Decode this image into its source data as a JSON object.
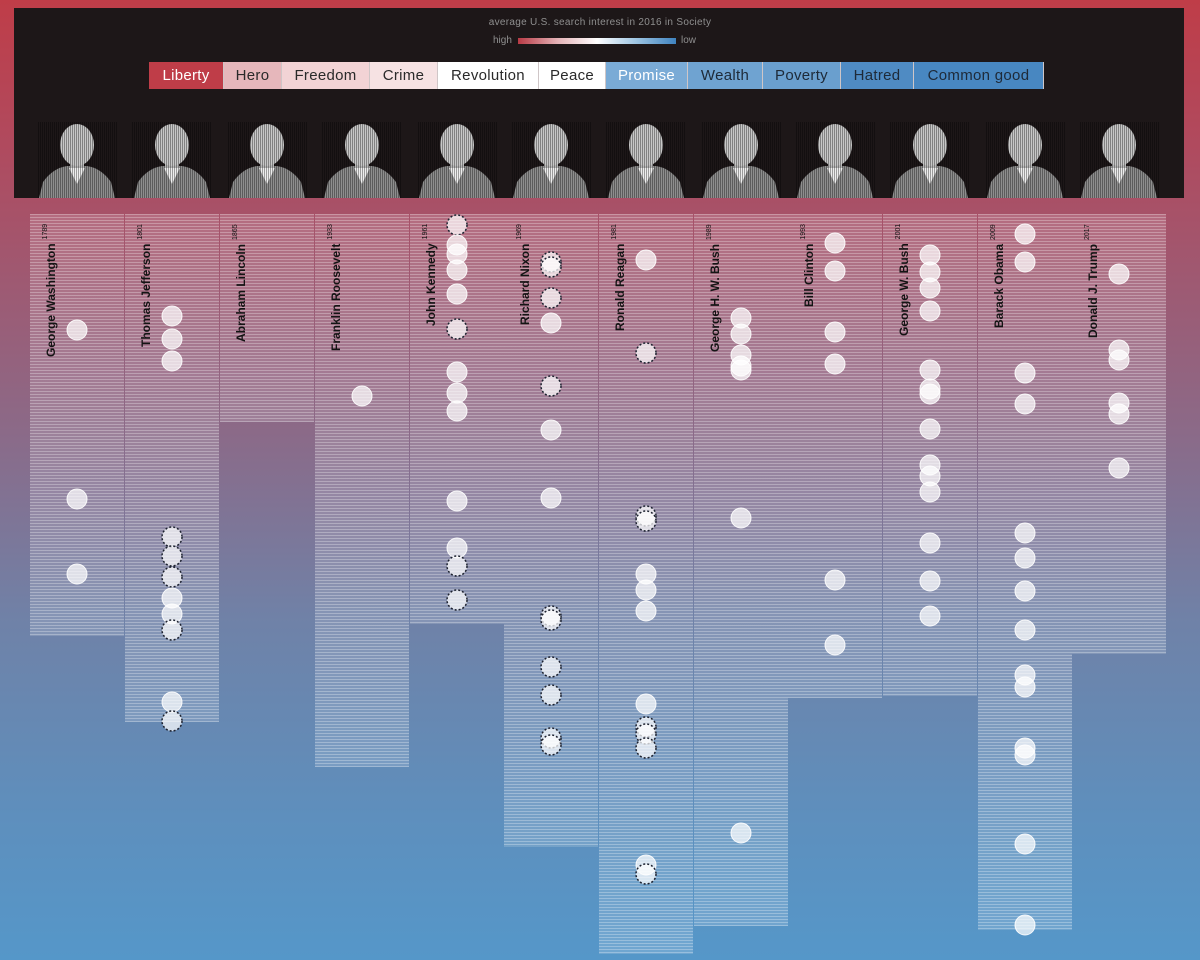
{
  "legend": {
    "caption": "average U.S. search interest in 2016 in Society",
    "high": "high",
    "low": "low"
  },
  "categories": [
    {
      "label": "Liberty",
      "bg": "#bf3d48",
      "fg": "#ffffff"
    },
    {
      "label": "Hero",
      "bg": "#e6b7bb",
      "fg": "#2a2a2a"
    },
    {
      "label": "Freedom",
      "bg": "#f2d3d5",
      "fg": "#2a2a2a"
    },
    {
      "label": "Crime",
      "bg": "#f6e2e3",
      "fg": "#2a2a2a"
    },
    {
      "label": "Revolution",
      "bg": "#ffffff",
      "fg": "#2a2a2a"
    },
    {
      "label": "Peace",
      "bg": "#ffffff",
      "fg": "#2a2a2a"
    },
    {
      "label": "Promise",
      "bg": "#7aabd6",
      "fg": "#ffffff"
    },
    {
      "label": "Wealth",
      "bg": "#6fa3d1",
      "fg": "#1e2a38"
    },
    {
      "label": "Poverty",
      "bg": "#6a9fce",
      "fg": "#1e2a38"
    },
    {
      "label": "Hatred",
      "bg": "#4f8bc3",
      "fg": "#1e2a38"
    },
    {
      "label": "Common good",
      "bg": "#4887c1",
      "fg": "#1e2a38"
    }
  ],
  "chart_data": {
    "type": "scatter",
    "presidents": [
      {
        "name": "George Washington",
        "year": "1789",
        "dots": [
          {
            "y": 330
          },
          {
            "y": 499
          },
          {
            "y": 574
          }
        ]
      },
      {
        "name": "Thomas Jefferson",
        "year": "1801",
        "dots": [
          {
            "y": 316
          },
          {
            "y": 339
          },
          {
            "y": 361
          },
          {
            "y": 537,
            "dashed": true
          },
          {
            "y": 556,
            "dashed": true
          },
          {
            "y": 577,
            "dashed": true
          },
          {
            "y": 598
          },
          {
            "y": 614
          },
          {
            "y": 630,
            "dashed": true
          },
          {
            "y": 702
          },
          {
            "y": 721,
            "dashed": true
          }
        ]
      },
      {
        "name": "Abraham Lincoln",
        "year": "1865",
        "dots": []
      },
      {
        "name": "Franklin Roosevelt",
        "year": "1933",
        "dots": [
          {
            "y": 396
          }
        ]
      },
      {
        "name": "John Kennedy",
        "year": "1961",
        "dots": [
          {
            "y": 225,
            "dashed": true
          },
          {
            "y": 245
          },
          {
            "y": 254
          },
          {
            "y": 270
          },
          {
            "y": 294
          },
          {
            "y": 329,
            "dashed": true
          },
          {
            "y": 372
          },
          {
            "y": 393
          },
          {
            "y": 411
          },
          {
            "y": 501
          },
          {
            "y": 548
          },
          {
            "y": 566,
            "dashed": true
          },
          {
            "y": 600,
            "dashed": true
          }
        ]
      },
      {
        "name": "Richard Nixon",
        "year": "1969",
        "dots": [
          {
            "y": 262,
            "dashed": true
          },
          {
            "y": 267,
            "dashed": true
          },
          {
            "y": 298,
            "dashed": true
          },
          {
            "y": 323
          },
          {
            "y": 386,
            "dashed": true
          },
          {
            "y": 430
          },
          {
            "y": 498
          },
          {
            "y": 616,
            "dashed": true
          },
          {
            "y": 620,
            "dashed": true
          },
          {
            "y": 667,
            "dashed": true
          },
          {
            "y": 695,
            "dashed": true
          },
          {
            "y": 738,
            "dashed": true
          },
          {
            "y": 745,
            "dashed": true
          }
        ]
      },
      {
        "name": "Ronald Reagan",
        "year": "1981",
        "dots": [
          {
            "y": 260
          },
          {
            "y": 353,
            "dashed": true
          },
          {
            "y": 516,
            "dashed": true
          },
          {
            "y": 521,
            "dashed": true
          },
          {
            "y": 574
          },
          {
            "y": 590
          },
          {
            "y": 611
          },
          {
            "y": 704
          },
          {
            "y": 727,
            "dashed": true
          },
          {
            "y": 734,
            "dashed": true
          },
          {
            "y": 748,
            "dashed": true
          },
          {
            "y": 865
          },
          {
            "y": 874,
            "dashed": true
          }
        ]
      },
      {
        "name": "George H. W. Bush",
        "year": "1989",
        "dots": [
          {
            "y": 318
          },
          {
            "y": 334
          },
          {
            "y": 355
          },
          {
            "y": 366
          },
          {
            "y": 370
          },
          {
            "y": 518
          },
          {
            "y": 833
          }
        ]
      },
      {
        "name": "Bill Clinton",
        "year": "1993",
        "dots": [
          {
            "y": 243
          },
          {
            "y": 271
          },
          {
            "y": 332
          },
          {
            "y": 364
          },
          {
            "y": 580
          },
          {
            "y": 645
          }
        ]
      },
      {
        "name": "George W. Bush",
        "year": "2001",
        "dots": [
          {
            "y": 255
          },
          {
            "y": 272
          },
          {
            "y": 288
          },
          {
            "y": 311
          },
          {
            "y": 370
          },
          {
            "y": 389
          },
          {
            "y": 394
          },
          {
            "y": 429
          },
          {
            "y": 465
          },
          {
            "y": 476
          },
          {
            "y": 492
          },
          {
            "y": 543
          },
          {
            "y": 581
          },
          {
            "y": 616
          }
        ]
      },
      {
        "name": "Barack Obama",
        "year": "2009",
        "dots": [
          {
            "y": 234
          },
          {
            "y": 262
          },
          {
            "y": 373
          },
          {
            "y": 404
          },
          {
            "y": 533
          },
          {
            "y": 558
          },
          {
            "y": 591
          },
          {
            "y": 630
          },
          {
            "y": 675
          },
          {
            "y": 687
          },
          {
            "y": 748
          },
          {
            "y": 755
          },
          {
            "y": 844
          },
          {
            "y": 925
          }
        ]
      },
      {
        "name": "Donald J. Trump",
        "year": "2017",
        "dots": [
          {
            "y": 274
          },
          {
            "y": 350
          },
          {
            "y": 360
          },
          {
            "y": 403
          },
          {
            "y": 414
          },
          {
            "y": 468
          }
        ]
      }
    ]
  }
}
